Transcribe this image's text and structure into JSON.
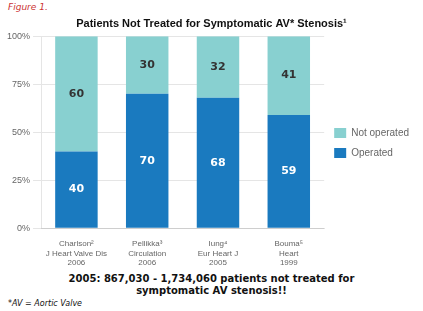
{
  "chart_data": {
    "type": "bar",
    "title": "Patients Not Treated for Symptomatic AV* Stenosis¹",
    "categories": [
      "Charlson²\nJ Heart Valve Dis\n2006",
      "Pellikka³\nCirculation\n2006",
      "Iung⁴\nEur Heart J\n2005",
      "Bouma⁵\nHeart\n1999"
    ],
    "series": [
      {
        "name": "Operated",
        "color": "#1a7abf",
        "values": [
          40,
          70,
          68,
          59
        ]
      },
      {
        "name": "Not operated",
        "color": "#88d0d0",
        "values": [
          60,
          30,
          32,
          41
        ]
      }
    ],
    "stacked": true,
    "ylim": [
      0,
      100
    ],
    "yticks": [
      {
        "value": 0,
        "label": "0%"
      },
      {
        "value": 25,
        "label": "25%"
      },
      {
        "value": 50,
        "label": "50%"
      },
      {
        "value": 75,
        "label": "75%"
      },
      {
        "value": 100,
        "label": "100%"
      }
    ],
    "grid": true,
    "data_labels": true,
    "legend": "right",
    "annotations": [
      "Figure 1.",
      "2005: 867,030 - 1,734,060 patients not treated for\nsymptomatic AV stenosis!!",
      "*AV = Aortic Valve"
    ]
  }
}
